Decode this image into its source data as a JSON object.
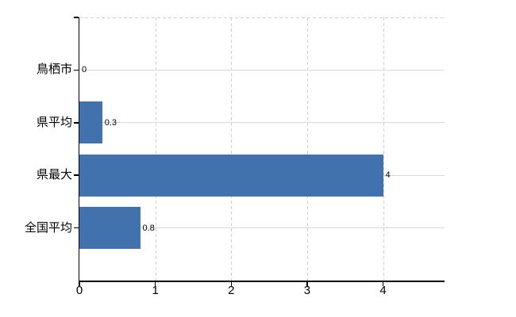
{
  "chart_data": {
    "type": "bar",
    "orientation": "horizontal",
    "title": "",
    "xlabel": "",
    "ylabel": "",
    "categories": [
      "鳥栖市",
      "県平均",
      "県最大",
      "全国平均"
    ],
    "values": [
      0,
      0.3,
      4,
      0.8
    ],
    "value_labels": [
      "0",
      "0.3",
      "4",
      "0.8"
    ],
    "xlim": [
      0,
      4.81
    ],
    "xticks": [
      0,
      1,
      2,
      3,
      4
    ],
    "xtick_labels": [
      "0",
      "1",
      "2",
      "3",
      "4"
    ],
    "grid": true,
    "legend": false,
    "gridline_style": {
      "vertical": "dashed",
      "horizontal": "solid",
      "plot_top_border": "dashed"
    },
    "colors": {
      "bar": "#4172ae",
      "axis": "#000000",
      "labels": "#000000",
      "gridline_solid": "#d3dbd3",
      "gridline_dashed": "#cfcfcf",
      "background": "#ffffff"
    }
  }
}
